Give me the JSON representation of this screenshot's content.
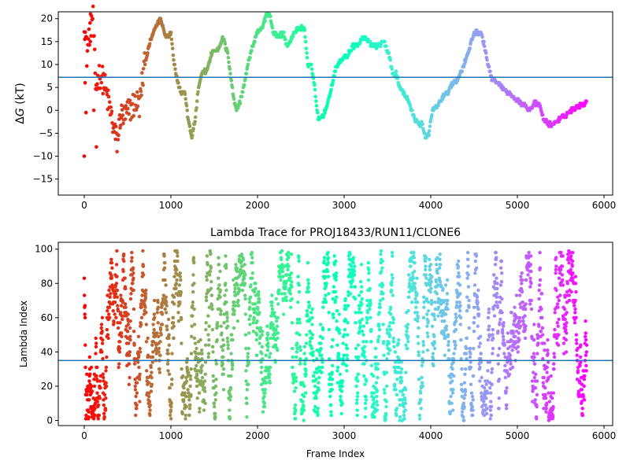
{
  "chart_data": [
    {
      "type": "scatter",
      "title": "",
      "xlabel": "",
      "ylabel": "ΔG (kT)",
      "ylabel_symbol": "Δ",
      "ylabel_var": "G",
      "ylabel_unit": " (kT)",
      "xlim": [
        -300,
        6100
      ],
      "ylim": [
        -18.5,
        21.5
      ],
      "xticks": [
        0,
        1000,
        2000,
        3000,
        4000,
        5000,
        6000
      ],
      "yticks": [
        -15,
        -10,
        -5,
        0,
        5,
        10,
        15,
        20
      ],
      "hline": 7.2,
      "hline_color": "#1f77b4",
      "colormap": "rainbow (red at frame 0 → violet at frame ~5800)",
      "x_max_frame": 5800,
      "keypoints": [
        [
          0,
          20
        ],
        [
          30,
          12
        ],
        [
          60,
          17
        ],
        [
          100,
          21
        ],
        [
          130,
          5
        ],
        [
          180,
          8
        ],
        [
          230,
          6
        ],
        [
          260,
          3
        ],
        [
          300,
          0
        ],
        [
          350,
          -5
        ],
        [
          380,
          -7
        ],
        [
          420,
          -1
        ],
        [
          460,
          -1.5
        ],
        [
          520,
          0
        ],
        [
          560,
          1
        ],
        [
          600,
          2
        ],
        [
          640,
          1
        ],
        [
          660,
          5
        ],
        [
          700,
          10
        ],
        [
          760,
          15
        ],
        [
          820,
          18
        ],
        [
          880,
          20
        ],
        [
          940,
          16
        ],
        [
          1000,
          17
        ],
        [
          1040,
          10
        ],
        [
          1080,
          6
        ],
        [
          1120,
          4
        ],
        [
          1160,
          4
        ],
        [
          1200,
          -2
        ],
        [
          1240,
          -6
        ],
        [
          1280,
          -2
        ],
        [
          1320,
          5
        ],
        [
          1360,
          8
        ],
        [
          1420,
          9
        ],
        [
          1480,
          13
        ],
        [
          1540,
          13
        ],
        [
          1600,
          16
        ],
        [
          1660,
          12
        ],
        [
          1720,
          3
        ],
        [
          1760,
          0
        ],
        [
          1800,
          2
        ],
        [
          1850,
          6
        ],
        [
          1900,
          11
        ],
        [
          1960,
          15
        ],
        [
          2000,
          17
        ],
        [
          2060,
          18
        ],
        [
          2100,
          21
        ],
        [
          2140,
          21
        ],
        [
          2180,
          17
        ],
        [
          2240,
          16
        ],
        [
          2300,
          17
        ],
        [
          2340,
          14
        ],
        [
          2380,
          15
        ],
        [
          2420,
          17
        ],
        [
          2480,
          18
        ],
        [
          2540,
          18
        ],
        [
          2580,
          10
        ],
        [
          2620,
          10
        ],
        [
          2660,
          5
        ],
        [
          2700,
          -2
        ],
        [
          2760,
          -1
        ],
        [
          2820,
          2
        ],
        [
          2900,
          9
        ],
        [
          2960,
          11
        ],
        [
          3040,
          12
        ],
        [
          3100,
          14
        ],
        [
          3160,
          14
        ],
        [
          3220,
          16
        ],
        [
          3280,
          15
        ],
        [
          3340,
          14
        ],
        [
          3400,
          14
        ],
        [
          3460,
          15
        ],
        [
          3520,
          12
        ],
        [
          3560,
          8
        ],
        [
          3600,
          8
        ],
        [
          3640,
          5
        ],
        [
          3680,
          4
        ],
        [
          3740,
          2
        ],
        [
          3780,
          0
        ],
        [
          3820,
          -2
        ],
        [
          3860,
          -3
        ],
        [
          3900,
          -3
        ],
        [
          3940,
          -6
        ],
        [
          3980,
          -5
        ],
        [
          4020,
          0
        ],
        [
          4080,
          1
        ],
        [
          4140,
          3
        ],
        [
          4200,
          4
        ],
        [
          4260,
          6
        ],
        [
          4320,
          7
        ],
        [
          4380,
          10
        ],
        [
          4440,
          13
        ],
        [
          4500,
          17
        ],
        [
          4580,
          17
        ],
        [
          4620,
          14
        ],
        [
          4660,
          10
        ],
        [
          4700,
          7
        ],
        [
          4760,
          6
        ],
        [
          4820,
          5
        ],
        [
          4880,
          4
        ],
        [
          4960,
          3
        ],
        [
          5020,
          2
        ],
        [
          5080,
          1
        ],
        [
          5140,
          0
        ],
        [
          5200,
          1.5
        ],
        [
          5260,
          1
        ],
        [
          5300,
          -2
        ],
        [
          5360,
          -3
        ],
        [
          5420,
          -3
        ],
        [
          5480,
          -2
        ],
        [
          5560,
          -1
        ],
        [
          5620,
          0
        ],
        [
          5700,
          1
        ],
        [
          5780,
          1.5
        ]
      ],
      "outliers": [
        [
          0,
          -10
        ],
        [
          10,
          6
        ],
        [
          20,
          -0.5
        ],
        [
          70,
          15
        ],
        [
          110,
          0
        ],
        [
          140,
          -8
        ]
      ]
    },
    {
      "type": "scatter",
      "title": "Lambda Trace for PROJ18433/RUN11/CLONE6",
      "xlabel": "Frame Index",
      "ylabel": "Lambda Index",
      "xlim": [
        -300,
        6100
      ],
      "ylim": [
        -3,
        104
      ],
      "xticks": [
        0,
        1000,
        2000,
        3000,
        4000,
        5000,
        6000
      ],
      "yticks": [
        0,
        20,
        40,
        60,
        80,
        100
      ],
      "hline": 35,
      "hline_color": "#1f77b4",
      "colormap": "rainbow (red at frame 0 → violet at frame ~5800)",
      "x_max_frame": 5800,
      "lambda_range": [
        0,
        99
      ],
      "note_values": "dense vertical bands of points sweeping lambda 0–99 across frames 0–5800"
    }
  ]
}
